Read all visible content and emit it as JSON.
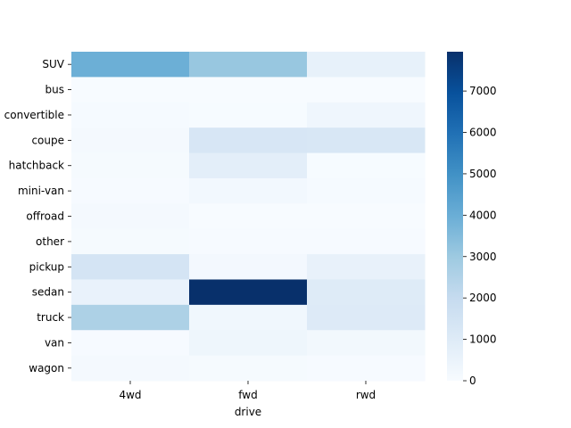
{
  "chart_data": {
    "type": "heatmap",
    "title": "",
    "xlabel": "drive",
    "ylabel": "",
    "x_categories": [
      "4wd",
      "fwd",
      "rwd"
    ],
    "y_categories": [
      "SUV",
      "bus",
      "convertible",
      "coupe",
      "hatchback",
      "mini-van",
      "offroad",
      "other",
      "pickup",
      "sedan",
      "truck",
      "van",
      "wagon"
    ],
    "values": [
      [
        3950,
        3100,
        650
      ],
      [
        10,
        0,
        10
      ],
      [
        60,
        20,
        300
      ],
      [
        110,
        1300,
        1250
      ],
      [
        80,
        800,
        20
      ],
      [
        40,
        180,
        60
      ],
      [
        100,
        10,
        10
      ],
      [
        80,
        40,
        40
      ],
      [
        1400,
        160,
        600
      ],
      [
        550,
        7950,
        1000
      ],
      [
        2600,
        260,
        1050
      ],
      [
        40,
        340,
        200
      ],
      [
        120,
        80,
        40
      ]
    ],
    "colormap": "Blues",
    "vmin": 0,
    "vmax": 7950,
    "colorbar_ticks": [
      0,
      1000,
      2000,
      3000,
      4000,
      5000,
      6000,
      7000
    ],
    "colorbar_tick_labels": [
      "0",
      "1000",
      "2000",
      "3000",
      "4000",
      "5000",
      "6000",
      "7000"
    ]
  }
}
